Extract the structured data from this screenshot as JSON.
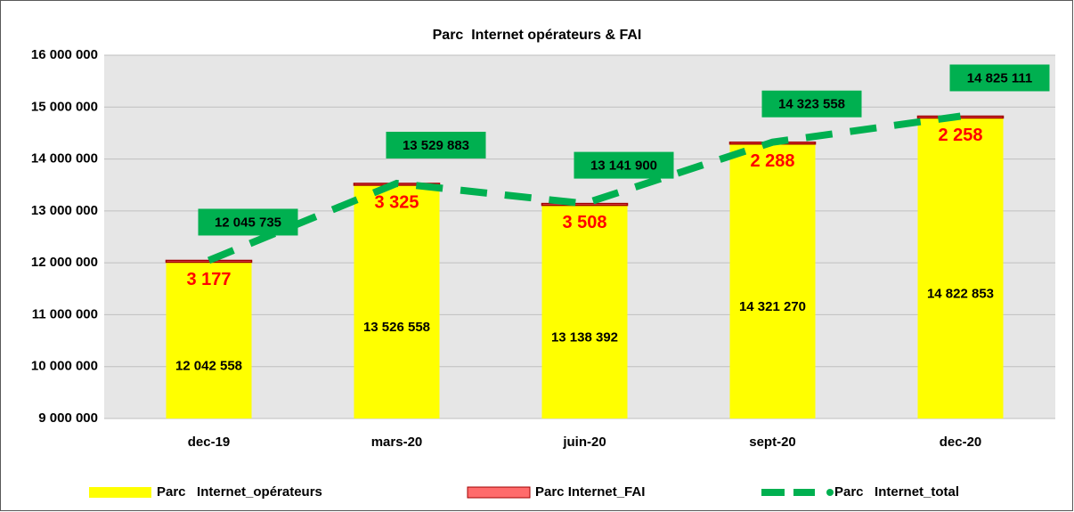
{
  "chart_data": {
    "type": "bar",
    "title": "Parc  Internet opérateurs & FAI",
    "categories": [
      "dec-19",
      "mars-20",
      "juin-20",
      "sept-20",
      "dec-20"
    ],
    "series": [
      {
        "name": "Parc   Internet_opérateurs",
        "color": "#ffff00",
        "type": "bar",
        "values": [
          12042558,
          13526558,
          13138392,
          14321270,
          14822853
        ],
        "value_labels": [
          "12 042 558",
          "13 526 558",
          "13 138 392",
          "14 321 270",
          "14 822 853"
        ]
      },
      {
        "name": "Parc Internet_FAI",
        "color": "#ff6b6b",
        "type": "bar",
        "values": [
          3177,
          3325,
          3508,
          2288,
          2258
        ],
        "value_labels": [
          "3 177",
          "3 325",
          "3 508",
          "2 288",
          "2 258"
        ]
      },
      {
        "name": "Parc   Internet_total",
        "color": "#00b050",
        "type": "line",
        "values": [
          12045735,
          13529883,
          13141900,
          14323558,
          14825111
        ],
        "value_labels": [
          "12 045 735",
          "13 529 883",
          "13 141 900",
          "14 323 558",
          "14 825 111"
        ]
      }
    ],
    "ylim": [
      9000000,
      16000000
    ],
    "yticks": [
      {
        "value": 9000000,
        "label": "9 000 000"
      },
      {
        "value": 10000000,
        "label": "10 000 000"
      },
      {
        "value": 11000000,
        "label": "11 000 000"
      },
      {
        "value": 12000000,
        "label": "12 000 000"
      },
      {
        "value": 13000000,
        "label": "13 000 000"
      },
      {
        "value": 14000000,
        "label": "14 000 000"
      },
      {
        "value": 15000000,
        "label": "15 000 000"
      },
      {
        "value": 16000000,
        "label": "16 000 000"
      }
    ],
    "grid": true
  }
}
